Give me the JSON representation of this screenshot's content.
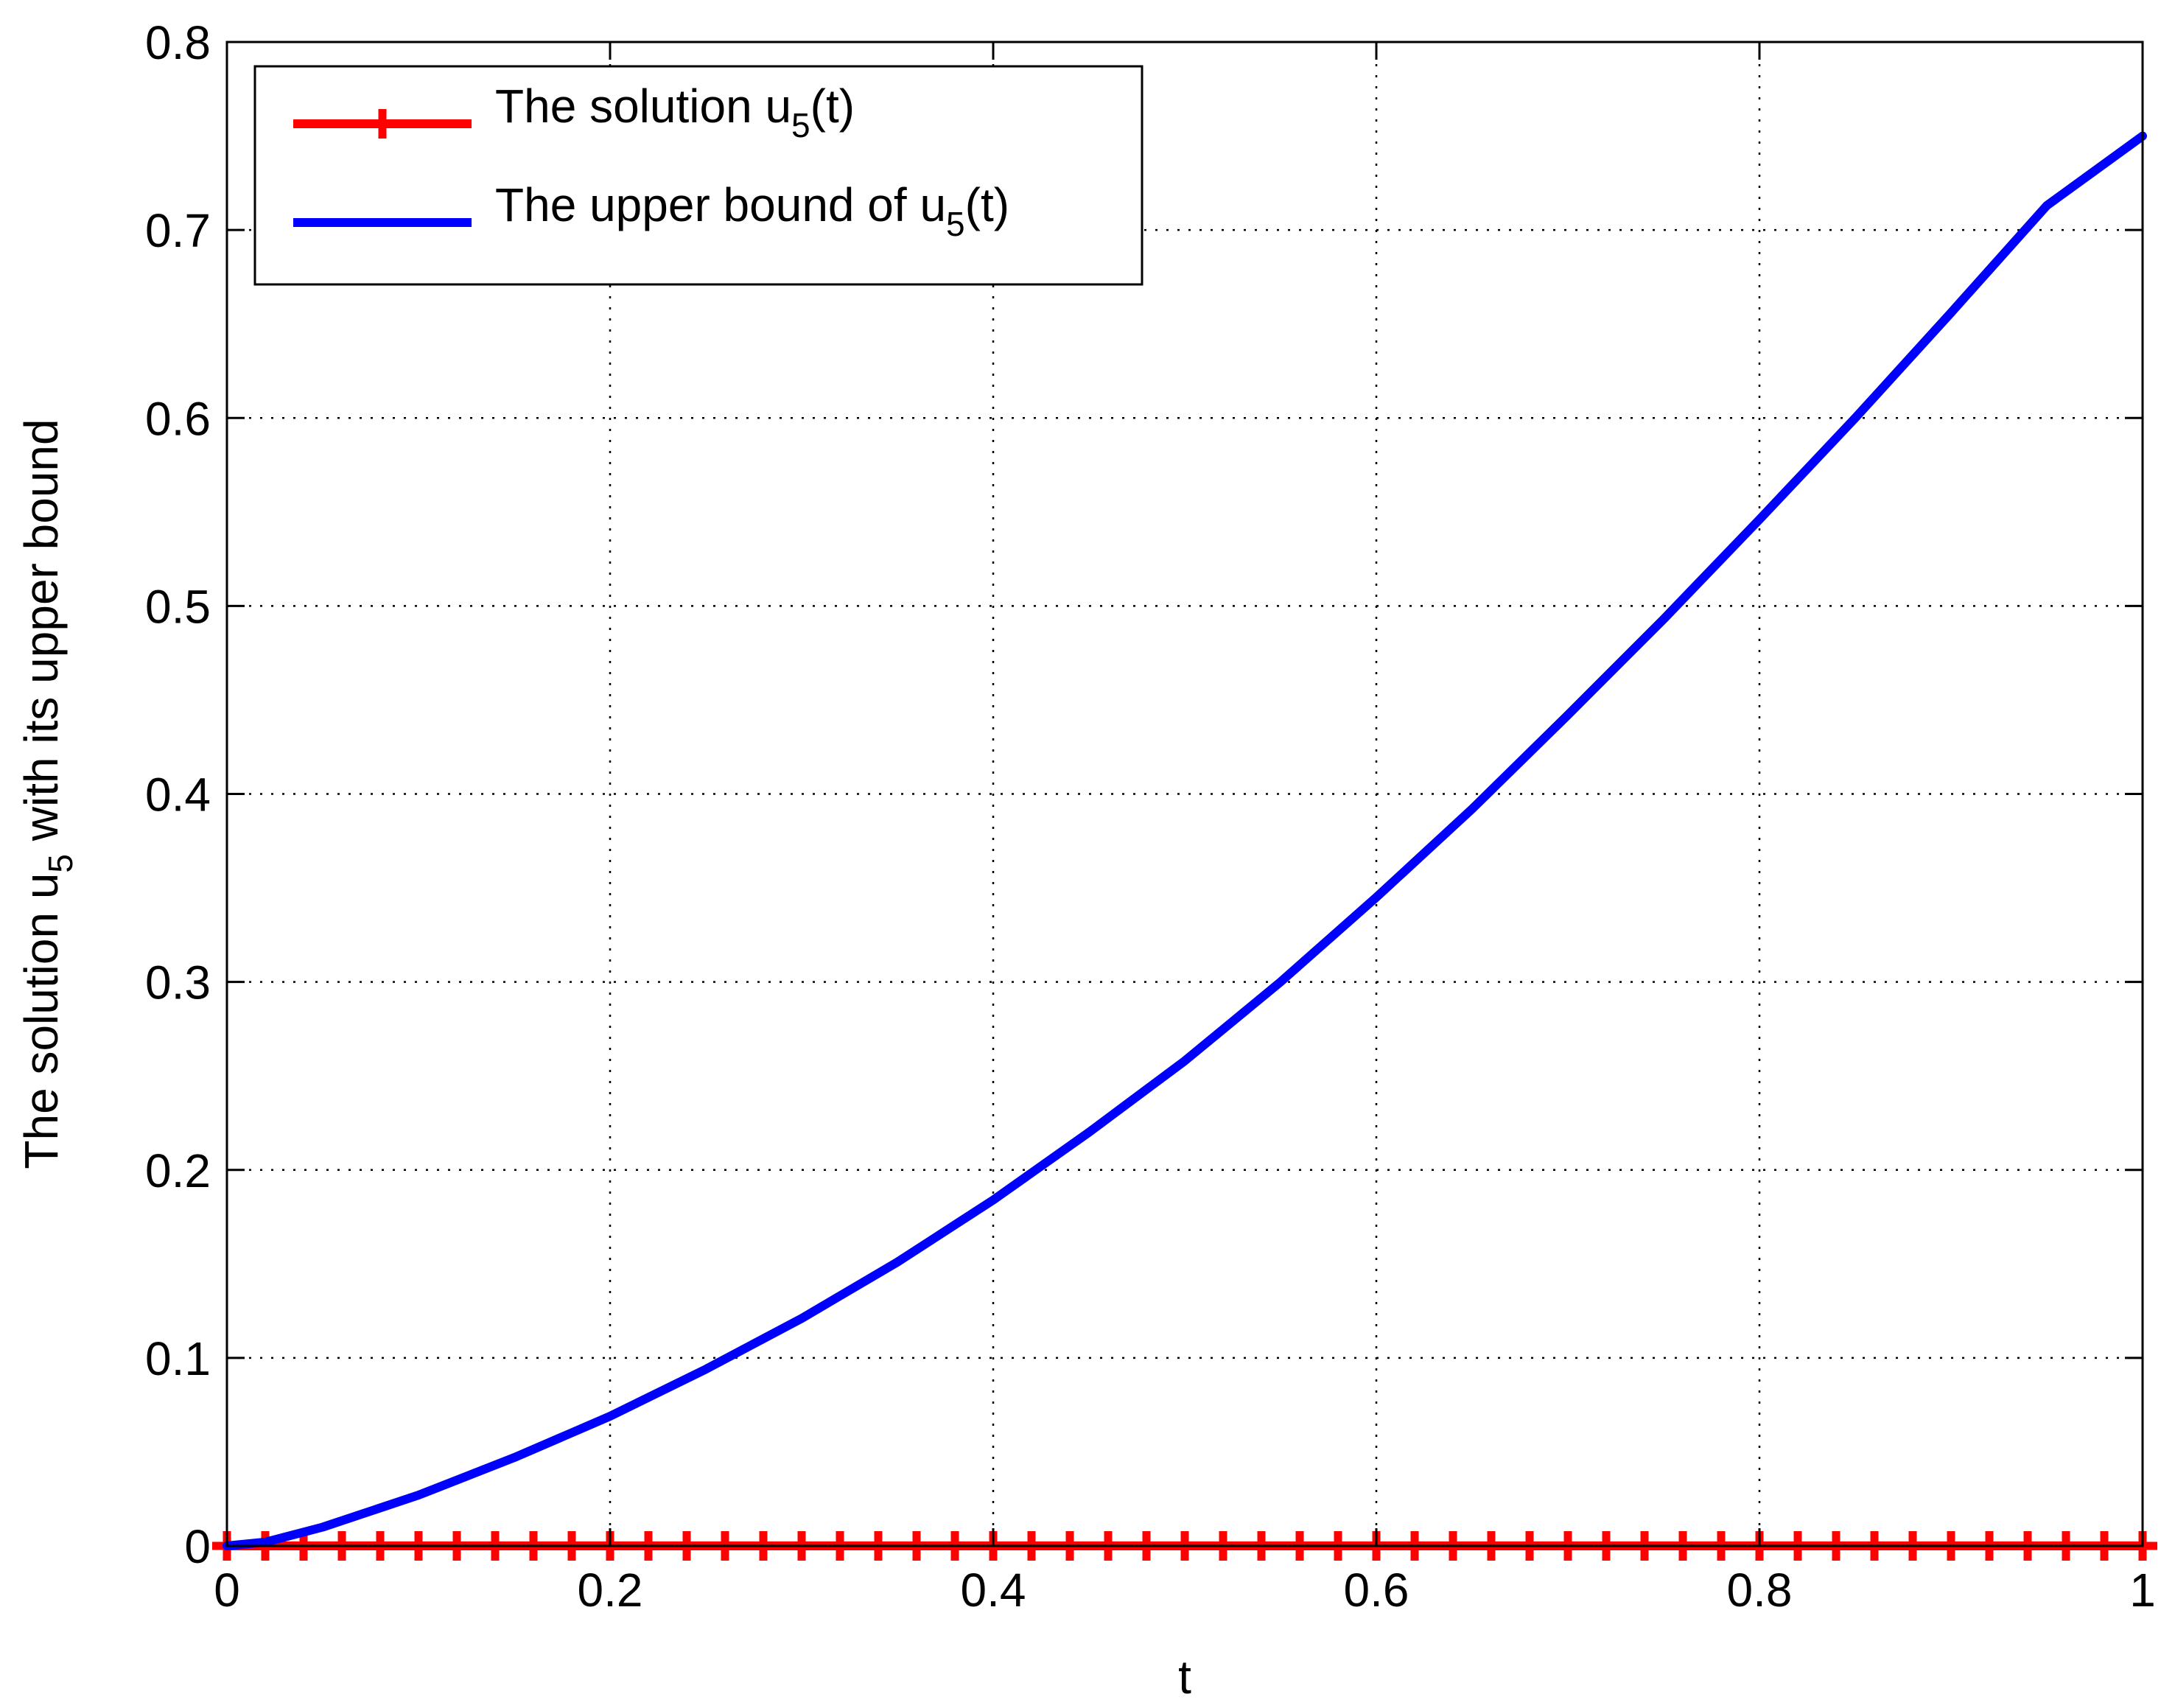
{
  "chart_data": {
    "type": "line",
    "xlabel": "t",
    "ylabel": {
      "before": "The solution u",
      "sub": "5",
      "after": " with its upper bound"
    },
    "xlim": [
      0,
      1
    ],
    "ylim": [
      0,
      0.8
    ],
    "xticks": [
      0,
      0.2,
      0.4,
      0.6,
      0.8,
      1
    ],
    "xtick_labels": [
      "0",
      "0.2",
      "0.4",
      "0.6",
      "0.8",
      "1"
    ],
    "yticks": [
      0,
      0.1,
      0.2,
      0.3,
      0.4,
      0.5,
      0.6,
      0.7,
      0.8
    ],
    "ytick_labels": [
      "0",
      "0.1",
      "0.2",
      "0.3",
      "0.4",
      "0.5",
      "0.6",
      "0.7",
      "0.8"
    ],
    "grid": true,
    "legend_position": "top-left",
    "series": [
      {
        "name": {
          "before": "The solution u",
          "sub": "5",
          "after": "(t)"
        },
        "color": "#ff0000",
        "marker": "plus",
        "x": [
          0,
          0.02,
          0.04,
          0.06,
          0.08,
          0.1,
          0.12,
          0.14,
          0.16,
          0.18,
          0.2,
          0.22,
          0.24,
          0.26,
          0.28,
          0.3,
          0.32,
          0.34,
          0.36,
          0.38,
          0.4,
          0.42,
          0.44,
          0.46,
          0.48,
          0.5,
          0.52,
          0.54,
          0.56,
          0.58,
          0.6,
          0.62,
          0.64,
          0.66,
          0.68,
          0.7,
          0.72,
          0.74,
          0.76,
          0.78,
          0.8,
          0.82,
          0.84,
          0.86,
          0.88,
          0.9,
          0.92,
          0.94,
          0.96,
          0.98,
          1
        ],
        "y": [
          0,
          0,
          0,
          0,
          0,
          0,
          0,
          0,
          0,
          0,
          0,
          0,
          0,
          0,
          0,
          0,
          0,
          0,
          0,
          0,
          0,
          0,
          0,
          0,
          0,
          0,
          0,
          0,
          0,
          0,
          0,
          0,
          0,
          0,
          0,
          0,
          0,
          0,
          0,
          0,
          0,
          0,
          0,
          0,
          0,
          0,
          0,
          0,
          0,
          0,
          0
        ]
      },
      {
        "name": {
          "before": "The upper bound of u",
          "sub": "5",
          "after": "(t)"
        },
        "color": "#0000ff",
        "marker": "none",
        "x": [
          0,
          0.02,
          0.05,
          0.1,
          0.15,
          0.2,
          0.25,
          0.3,
          0.35,
          0.4,
          0.45,
          0.5,
          0.55,
          0.6,
          0.65,
          0.7,
          0.75,
          0.8,
          0.85,
          0.9,
          0.95,
          1
        ],
        "y": [
          0,
          0.002,
          0.01,
          0.027,
          0.047,
          0.069,
          0.094,
          0.121,
          0.151,
          0.184,
          0.22,
          0.258,
          0.3,
          0.345,
          0.392,
          0.442,
          0.493,
          0.546,
          0.6,
          0.656,
          0.713,
          0.75
        ]
      }
    ]
  }
}
